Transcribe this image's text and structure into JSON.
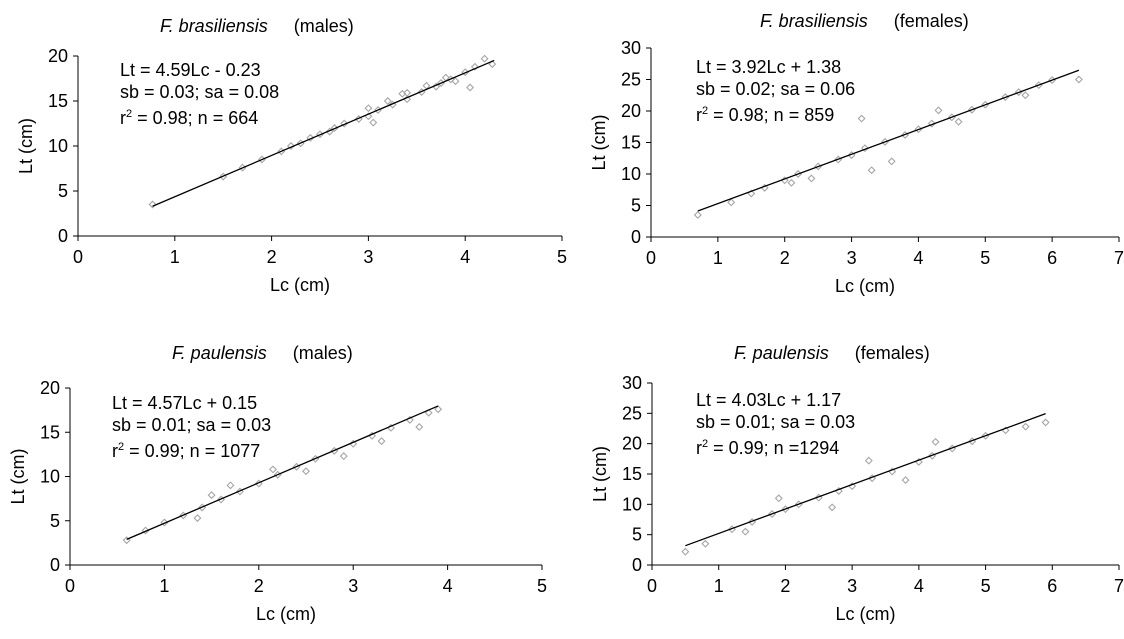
{
  "chart_data": [
    {
      "type": "scatter",
      "title": {
        "species": "F. brasiliensis",
        "sex": "(males)"
      },
      "xlabel": "Lc (cm)",
      "ylabel": "Lt (cm)",
      "xlim": [
        0,
        5
      ],
      "ylim": [
        0,
        20
      ],
      "xticks": [
        "0",
        "1",
        "2",
        "3",
        "4",
        "5"
      ],
      "yticks": [
        "0",
        "5",
        "10",
        "15",
        "20"
      ],
      "annotations": [
        "Lt = 4.59Lc - 0.23",
        "sb = 0.03; sa = 0.08",
        "0.98; n = 664"
      ],
      "r2_prefix": "r",
      "r2_sup": "2",
      "r2_eq": " = ",
      "regression": {
        "slope": 4.59,
        "intercept": -0.23,
        "x_range": [
          0.77,
          4.3
        ]
      },
      "points_x": [
        0.77,
        1.5,
        1.7,
        1.9,
        2.1,
        2.3,
        2.5,
        2.6,
        2.75,
        2.9,
        3.0,
        3.1,
        3.25,
        3.4,
        3.55,
        3.7,
        3.85,
        4.0,
        4.1,
        4.2,
        4.28,
        3.0,
        3.2,
        3.4,
        3.6,
        3.8,
        2.4,
        2.2,
        3.75,
        3.9,
        4.05,
        3.35,
        3.05,
        2.65
      ],
      "points_y": [
        3.5,
        6.6,
        7.6,
        8.5,
        9.4,
        10.3,
        11.3,
        11.6,
        12.5,
        13.0,
        13.3,
        14.0,
        14.6,
        15.2,
        16.0,
        16.6,
        17.4,
        18.2,
        18.8,
        19.7,
        19.1,
        14.2,
        15.0,
        15.9,
        16.7,
        17.6,
        10.9,
        10.0,
        17.0,
        17.2,
        16.5,
        15.8,
        12.6,
        12.0
      ]
    },
    {
      "type": "scatter",
      "title": {
        "species": "F. brasiliensis",
        "sex": "(females)"
      },
      "xlabel": "Lc (cm)",
      "ylabel": "Lt (cm)",
      "xlim": [
        0,
        7
      ],
      "ylim": [
        0,
        30
      ],
      "xticks": [
        "0",
        "1",
        "2",
        "3",
        "4",
        "5",
        "6",
        "7"
      ],
      "yticks": [
        "0",
        "5",
        "10",
        "15",
        "20",
        "25",
        "30"
      ],
      "annotations": [
        "Lt = 3.92Lc + 1.38",
        "sb = 0.02; sa = 0.06",
        "0.98; n = 859"
      ],
      "r2_prefix": "r",
      "r2_sup": "2",
      "r2_eq": " = ",
      "regression": {
        "slope": 3.92,
        "intercept": 1.38,
        "x_range": [
          0.7,
          6.4
        ]
      },
      "points_x": [
        0.7,
        1.2,
        1.5,
        1.7,
        2.0,
        2.2,
        2.5,
        2.8,
        3.0,
        3.2,
        3.5,
        3.8,
        4.0,
        4.2,
        4.5,
        4.8,
        5.0,
        5.3,
        5.5,
        5.8,
        6.0,
        6.4,
        3.15,
        3.3,
        3.6,
        2.1,
        2.4,
        4.3,
        4.6,
        5.6
      ],
      "points_y": [
        3.5,
        5.5,
        6.9,
        7.8,
        9.0,
        10.0,
        11.2,
        12.3,
        13.0,
        14.1,
        15.1,
        16.2,
        17.1,
        18.0,
        19.0,
        20.2,
        21.0,
        22.2,
        23.0,
        24.1,
        24.9,
        25.0,
        18.8,
        10.6,
        12.0,
        8.6,
        9.3,
        20.1,
        18.3,
        22.5
      ]
    },
    {
      "type": "scatter",
      "title": {
        "species": "F. paulensis",
        "sex": "(males)"
      },
      "xlabel": "Lc (cm)",
      "ylabel": "Lt (cm)",
      "xlim": [
        0,
        5
      ],
      "ylim": [
        0,
        20
      ],
      "xticks": [
        "0",
        "1",
        "2",
        "3",
        "4",
        "5"
      ],
      "yticks": [
        "0",
        "5",
        "10",
        "15",
        "20"
      ],
      "annotations": [
        "Lt = 4.57Lc + 0.15",
        "sb = 0.01; sa = 0.03",
        "0.99; n = 1077"
      ],
      "r2_prefix": "r",
      "r2_sup": "2",
      "r2_eq": " = ",
      "regression": {
        "slope": 4.57,
        "intercept": 0.15,
        "x_range": [
          0.6,
          3.9
        ]
      },
      "points_x": [
        0.6,
        0.8,
        1.0,
        1.2,
        1.4,
        1.6,
        1.8,
        2.0,
        2.2,
        2.4,
        2.6,
        2.8,
        3.0,
        3.2,
        3.4,
        3.6,
        3.8,
        3.9,
        1.5,
        1.7,
        2.5,
        2.9,
        3.3,
        3.7,
        2.15,
        1.35
      ],
      "points_y": [
        2.8,
        3.9,
        4.8,
        5.6,
        6.5,
        7.4,
        8.3,
        9.2,
        10.2,
        11.1,
        12.0,
        12.9,
        13.7,
        14.6,
        15.5,
        16.4,
        17.2,
        17.6,
        7.9,
        9.0,
        10.6,
        12.3,
        14.0,
        15.6,
        10.8,
        5.3
      ]
    },
    {
      "type": "scatter",
      "title": {
        "species": "F. paulensis",
        "sex": "(females)"
      },
      "xlabel": "Lc (cm)",
      "ylabel": "Lt (cm)",
      "xlim": [
        0,
        7
      ],
      "ylim": [
        0,
        30
      ],
      "xticks": [
        "0",
        "1",
        "2",
        "3",
        "4",
        "5",
        "6",
        "7"
      ],
      "yticks": [
        "0",
        "5",
        "10",
        "15",
        "20",
        "25",
        "30"
      ],
      "annotations": [
        "Lt = 4.03Lc + 1.17",
        "sb = 0.01; sa = 0.03",
        "0.99; n =1294"
      ],
      "r2_prefix": "r",
      "r2_sup": "2",
      "r2_eq": " = ",
      "regression": {
        "slope": 4.03,
        "intercept": 1.17,
        "x_range": [
          0.5,
          5.9
        ]
      },
      "points_x": [
        0.5,
        0.8,
        1.2,
        1.5,
        1.8,
        2.0,
        2.2,
        2.5,
        2.8,
        3.0,
        3.3,
        3.6,
        4.0,
        4.2,
        4.5,
        4.8,
        5.0,
        5.3,
        5.6,
        5.9,
        1.9,
        3.25,
        4.25,
        2.7,
        3.8,
        1.4
      ],
      "points_y": [
        2.2,
        3.5,
        5.9,
        7.1,
        8.4,
        9.2,
        10.0,
        11.1,
        12.2,
        13.0,
        14.3,
        15.4,
        17.0,
        18.0,
        19.2,
        20.4,
        21.3,
        22.2,
        22.8,
        23.5,
        11.0,
        17.2,
        20.3,
        9.5,
        14.0,
        5.5
      ]
    }
  ]
}
